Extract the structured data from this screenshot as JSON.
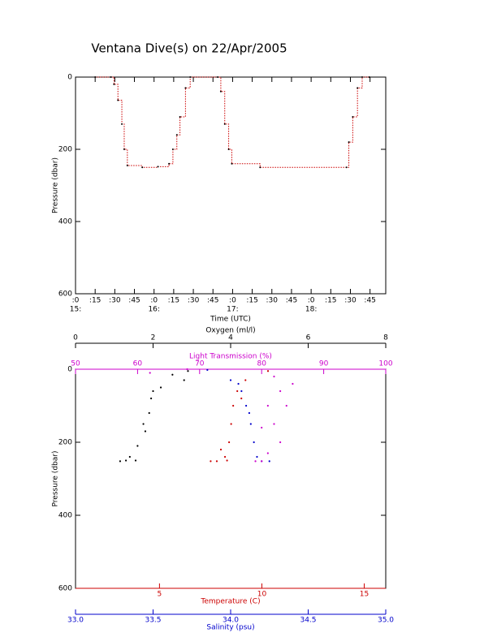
{
  "chart_data": [
    {
      "type": "line",
      "title": "Ventana Dive(s) on 22/Apr/2005",
      "xlabel": "Time (UTC)",
      "ylabel": "Pressure (dbar)",
      "xlim": [
        15,
        18.95
      ],
      "ylim": [
        600,
        0
      ],
      "step": true,
      "color": "#cc0000",
      "marker_color": "#000000",
      "xticks": [
        {
          "value": 15,
          "label": ":0"
        },
        {
          "value": 15.25,
          "label": ":15"
        },
        {
          "value": 15.5,
          "label": ":30"
        },
        {
          "value": 15.75,
          "label": ":45"
        },
        {
          "value": 16,
          "label": ":0"
        },
        {
          "value": 16.25,
          "label": ":15"
        },
        {
          "value": 16.5,
          "label": ":30"
        },
        {
          "value": 16.75,
          "label": ":45"
        },
        {
          "value": 17,
          "label": ":0"
        },
        {
          "value": 17.25,
          "label": ":15"
        },
        {
          "value": 17.5,
          "label": ":30"
        },
        {
          "value": 17.75,
          "label": ":45"
        },
        {
          "value": 18,
          "label": ":0"
        },
        {
          "value": 18.25,
          "label": ":15"
        },
        {
          "value": 18.5,
          "label": ":30"
        },
        {
          "value": 18.75,
          "label": ":45"
        }
      ],
      "hour_ticks": [
        {
          "value": 15,
          "label": "15:"
        },
        {
          "value": 16,
          "label": "16:"
        },
        {
          "value": 17,
          "label": "17:"
        },
        {
          "value": 18,
          "label": "18:"
        }
      ],
      "yticks": [
        0,
        200,
        400,
        600
      ],
      "x": [
        15.25,
        15.45,
        15.49,
        15.54,
        15.59,
        15.62,
        15.66,
        15.85,
        16.05,
        16.19,
        16.24,
        16.29,
        16.33,
        16.4,
        16.46,
        16.81,
        16.85,
        16.9,
        16.95,
        16.99,
        17.35,
        18.45,
        18.48,
        18.53,
        18.59,
        18.65,
        18.74
      ],
      "values": [
        0,
        0,
        20,
        64,
        130,
        200,
        245,
        250,
        248,
        240,
        200,
        160,
        110,
        30,
        0,
        0,
        40,
        130,
        200,
        240,
        250,
        250,
        180,
        110,
        30,
        0,
        0
      ]
    },
    {
      "type": "scatter",
      "ylabel": "Pressure (dbar)",
      "ylim": [
        600,
        0
      ],
      "yticks": [
        0,
        200,
        400,
        600
      ],
      "x_axes": [
        {
          "label": "Light Transmission (%)",
          "side": "top",
          "color": "#cc00cc",
          "xlim": [
            50,
            100
          ],
          "xticks": [
            50,
            60,
            70,
            80,
            90,
            100
          ]
        },
        {
          "label": "Oxygen (ml/l)",
          "side": "top",
          "color": "#000000",
          "xlim": [
            0,
            8
          ],
          "xticks": [
            0,
            2,
            4,
            6,
            8
          ]
        },
        {
          "label": "Temperature (C)",
          "side": "bottom",
          "color": "#cc0000",
          "xlim": [
            0.9,
            16.05
          ],
          "xticks": [
            5,
            10,
            15
          ]
        },
        {
          "label": "Salinity (psu)",
          "side": "bottom",
          "color": "#0000cc",
          "xlim": [
            33,
            35
          ],
          "xticks": [
            {
              "value": 33,
              "label": "33.0"
            },
            {
              "value": 33.5,
              "label": "33.5"
            },
            {
              "value": 34,
              "label": "34.0"
            },
            {
              "value": 34.5,
              "label": "34.5"
            },
            {
              "value": 35,
              "label": "35.0"
            }
          ]
        }
      ],
      "series": [
        {
          "x_axis": 1,
          "color": "#000000",
          "x": [
            2.9,
            2.8,
            2.2,
            1.95,
            1.9,
            1.8,
            1.6,
            1.4,
            1.3,
            1.15,
            2.5,
            2.0,
            1.75,
            1.55
          ],
          "values": [
            5,
            30,
            50,
            80,
            120,
            170,
            210,
            240,
            250,
            252,
            15,
            60,
            150,
            250
          ]
        },
        {
          "x_axis": 2,
          "color": "#cc0000",
          "x": [
            10.3,
            9.2,
            8.8,
            8.6,
            8.5,
            8.4,
            8.2,
            7.8,
            7.5,
            9.0,
            8.0,
            8.3
          ],
          "values": [
            5,
            30,
            60,
            100,
            150,
            200,
            240,
            252,
            252,
            80,
            220,
            250
          ]
        },
        {
          "x_axis": 3,
          "color": "#0000cc",
          "x": [
            33.85,
            34.0,
            34.07,
            34.1,
            34.13,
            34.15,
            34.17,
            34.2,
            34.25,
            34.05,
            34.12
          ],
          "values": [
            2,
            30,
            60,
            100,
            150,
            200,
            240,
            252,
            252,
            40,
            120
          ]
        },
        {
          "x_axis": 0,
          "color": "#cc00cc",
          "x": [
            62,
            68,
            82,
            83,
            81,
            82,
            83,
            81,
            80,
            84,
            80,
            79,
            85
          ],
          "values": [
            10,
            0,
            20,
            60,
            100,
            150,
            200,
            230,
            252,
            100,
            160,
            252,
            40
          ]
        }
      ]
    }
  ]
}
